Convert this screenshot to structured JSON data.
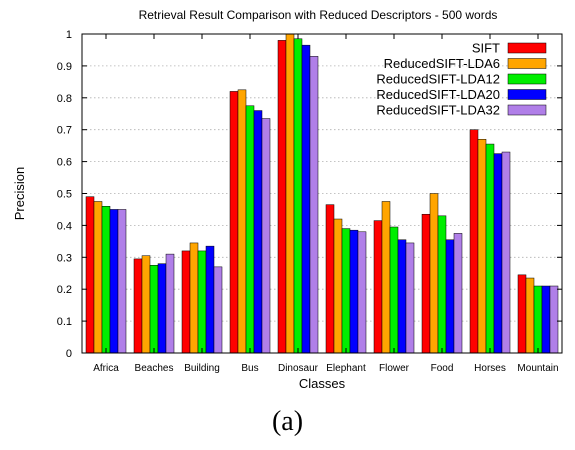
{
  "caption": "(a)",
  "chart_data": {
    "type": "bar",
    "title": "Retrieval Result Comparison with Reduced Descriptors - 500 words",
    "xlabel": "Classes",
    "ylabel": "Precision",
    "ylim": [
      0,
      1
    ],
    "yticks": [
      "0",
      "0.1",
      "0.2",
      "0.3",
      "0.4",
      "0.5",
      "0.6",
      "0.7",
      "0.8",
      "0.9",
      "1"
    ],
    "grid": true,
    "legend_position": "top-right",
    "categories": [
      "Africa",
      "Beaches",
      "Building",
      "Bus",
      "Dinosaur",
      "Elephant",
      "Flower",
      "Food",
      "Horses",
      "Mountain"
    ],
    "series": [
      {
        "name": "SIFT",
        "color": "#ff0000",
        "values": [
          0.49,
          0.295,
          0.32,
          0.82,
          0.98,
          0.465,
          0.415,
          0.435,
          0.7,
          0.245
        ]
      },
      {
        "name": "ReducedSIFT-LDA6",
        "color": "#ffa500",
        "values": [
          0.475,
          0.305,
          0.345,
          0.825,
          1.0,
          0.42,
          0.475,
          0.5,
          0.67,
          0.235
        ]
      },
      {
        "name": "ReducedSIFT-LDA12",
        "color": "#00ee00",
        "values": [
          0.46,
          0.275,
          0.32,
          0.775,
          0.985,
          0.39,
          0.395,
          0.43,
          0.655,
          0.21
        ]
      },
      {
        "name": "ReducedSIFT-LDA20",
        "color": "#0000ff",
        "values": [
          0.45,
          0.28,
          0.335,
          0.76,
          0.965,
          0.385,
          0.355,
          0.355,
          0.625,
          0.21
        ]
      },
      {
        "name": "ReducedSIFT-LDA32",
        "color": "#b07fe8",
        "values": [
          0.45,
          0.31,
          0.27,
          0.735,
          0.93,
          0.38,
          0.345,
          0.375,
          0.63,
          0.21
        ]
      }
    ]
  }
}
